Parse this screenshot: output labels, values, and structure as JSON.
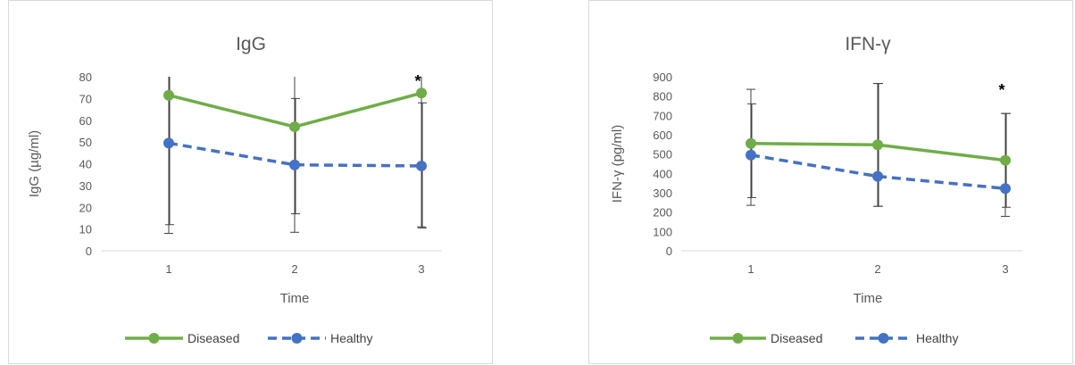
{
  "colors": {
    "diseased": "#70ad47",
    "healthy": "#4472c4",
    "error_bar": "#404040",
    "axis": "#d9d9d9",
    "text": "#595959"
  },
  "chart_data": [
    {
      "type": "line",
      "title": "IgG",
      "xlabel": "Time",
      "ylabel": "IgG (µg/ml)",
      "categories": [
        "1",
        "2",
        "3"
      ],
      "ylim": [
        0,
        80
      ],
      "yticks": [
        0,
        10,
        20,
        30,
        40,
        50,
        60,
        70,
        80
      ],
      "grid": false,
      "legend": "bottom",
      "series": [
        {
          "name": "Diseased",
          "values": [
            71.5,
            57,
            72.5
          ],
          "error_low": [
            8,
            8.5,
            11
          ],
          "error_high": [
            80,
            80,
            80
          ],
          "style": "solid",
          "color": "#70ad47"
        },
        {
          "name": "Healthy",
          "values": [
            49.5,
            39.5,
            39
          ],
          "error_low": [
            12,
            17,
            10.5
          ],
          "error_high": [
            80,
            70,
            68
          ],
          "style": "dashed",
          "color": "#4472c4"
        }
      ],
      "annotations": [
        {
          "text": "*",
          "category": "3",
          "y": 78
        }
      ]
    },
    {
      "type": "line",
      "title": "IFN-γ",
      "xlabel": "Time",
      "ylabel": "IFN-γ (pg/ml)",
      "categories": [
        "1",
        "2",
        "3"
      ],
      "ylim": [
        0,
        900
      ],
      "yticks": [
        0,
        100,
        200,
        300,
        400,
        500,
        600,
        700,
        800,
        900
      ],
      "grid": false,
      "legend": "bottom",
      "series": [
        {
          "name": "Diseased",
          "values": [
            555,
            548,
            468
          ],
          "error_low": [
            235,
            230,
            178
          ],
          "error_high": [
            835,
            865,
            710
          ],
          "style": "solid",
          "color": "#70ad47"
        },
        {
          "name": "Healthy",
          "values": [
            495,
            385,
            322
          ],
          "error_low": [
            275,
            230,
            225
          ],
          "error_high": [
            760,
            865,
            710
          ],
          "style": "dashed",
          "color": "#4472c4"
        }
      ],
      "annotations": [
        {
          "text": "*",
          "category": "3",
          "y": 830
        }
      ]
    }
  ]
}
